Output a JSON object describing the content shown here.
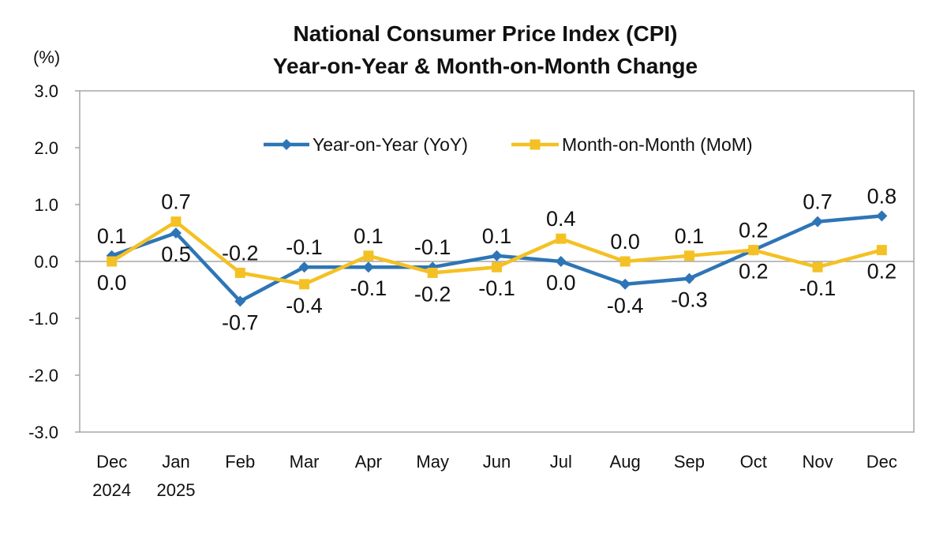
{
  "chart_data": {
    "type": "line",
    "title": [
      "National Consumer Price Index (CPI)",
      "Year-on-Year & Month-on-Month Change"
    ],
    "ylabel": "(%)",
    "xlabel": "",
    "ylim": [
      -3.0,
      3.0
    ],
    "yticks": [
      "3.0",
      "2.0",
      "1.0",
      "0.0",
      "-1.0",
      "-2.0",
      "-3.0"
    ],
    "ytick_values": [
      3,
      2,
      1,
      0,
      -1,
      -2,
      -3
    ],
    "grid": false,
    "legend": "top-right",
    "categories": [
      [
        "Dec",
        "2024"
      ],
      [
        "Jan",
        "2025"
      ],
      [
        "Feb"
      ],
      [
        "Mar"
      ],
      [
        "Apr"
      ],
      [
        "May"
      ],
      [
        "Jun"
      ],
      [
        "Jul"
      ],
      [
        "Aug"
      ],
      [
        "Sep"
      ],
      [
        "Oct"
      ],
      [
        "Nov"
      ],
      [
        "Dec"
      ]
    ],
    "series": [
      {
        "name": "Year-on-Year (YoY)",
        "color": "#2E75B6",
        "marker": "diamond",
        "values": [
          0.1,
          0.5,
          -0.7,
          -0.1,
          -0.1,
          -0.1,
          0.1,
          0.0,
          -0.4,
          -0.3,
          0.2,
          0.7,
          0.8
        ],
        "labels": [
          "0.1",
          "0.5",
          "-0.7",
          "-0.1",
          "-0.1",
          "-0.1",
          "0.1",
          "0.0",
          "-0.4",
          "-0.3",
          "0.2",
          "0.7",
          "0.8"
        ],
        "label_pos": [
          "above",
          "below",
          "below",
          "above",
          "below",
          "above",
          "above",
          "below",
          "below",
          "below",
          "below",
          "above",
          "above"
        ]
      },
      {
        "name": "Month-on-Month (MoM)",
        "color": "#F4C124",
        "marker": "square",
        "values": [
          0.0,
          0.7,
          -0.2,
          -0.4,
          0.1,
          -0.2,
          -0.1,
          0.4,
          0.0,
          0.1,
          0.2,
          -0.1,
          0.2
        ],
        "labels": [
          "0.0",
          "0.7",
          "-0.2",
          "-0.4",
          "0.1",
          "-0.2",
          "-0.1",
          "0.4",
          "0.0",
          "0.1",
          "0.2",
          "-0.1",
          "0.2"
        ],
        "label_pos": [
          "below",
          "above",
          "above",
          "below",
          "above",
          "below",
          "below",
          "above",
          "above",
          "above",
          "above",
          "below",
          "below"
        ]
      }
    ]
  }
}
